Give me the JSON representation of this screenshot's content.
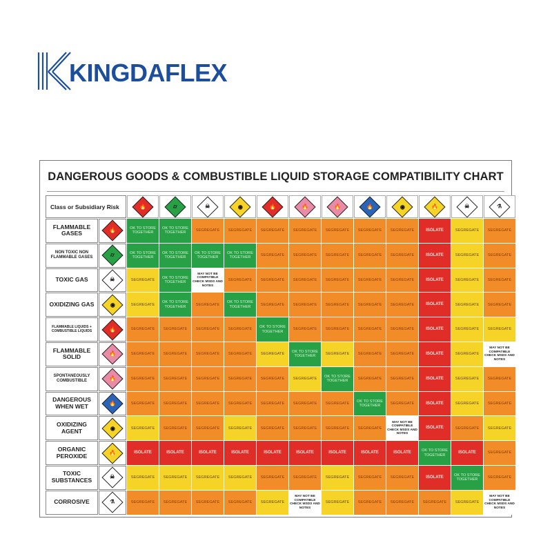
{
  "logo": {
    "brand": "KINGDAFLEX",
    "icon": "kingdaflex-logo"
  },
  "chart": {
    "title": "DANGEROUS GOODS & COMBUSTIBLE LIQUID STORAGE COMPATIBILITY CHART",
    "header_label": "Class or Subsidiary Risk",
    "text_segregate": "SEGREGATE",
    "text_ok": "OK TO STORE TOGETHER",
    "text_isolate": "ISOLATE",
    "text_mix": "MAY NOT BE COMPATIBLE CHECK MSDS AND NOTES",
    "legend_colors": {
      "segregate": "#f28c28",
      "segregate_alt": "#f5d327",
      "ok": "#27a046",
      "isolate": "#e12d27",
      "mix": "#ffffff"
    },
    "column_symbols": [
      {
        "icon": "flame-diamond-icon",
        "color": "#e12d27",
        "glyph": "🔥"
      },
      {
        "icon": "gas-cylinder-diamond-icon",
        "color": "#27a046",
        "glyph": "⌭"
      },
      {
        "icon": "skull-diamond-icon",
        "color": "#ffffff",
        "glyph": "☠"
      },
      {
        "icon": "oxidizer-diamond-icon",
        "color": "#f5d327",
        "glyph": "◉"
      },
      {
        "icon": "flame-diamond-icon",
        "color": "#e12d27",
        "glyph": "🔥"
      },
      {
        "icon": "striped-flame-diamond-icon",
        "color": "#e98aa6",
        "glyph": "🔥"
      },
      {
        "icon": "spontaneous-flame-diamond-icon",
        "color": "#e98aa6",
        "glyph": "🔥"
      },
      {
        "icon": "water-flame-diamond-icon",
        "color": "#2a64b8",
        "glyph": "🔥"
      },
      {
        "icon": "oxidizer-diamond-icon",
        "color": "#f5d327",
        "glyph": "◉"
      },
      {
        "icon": "organic-peroxide-diamond-icon",
        "color": "#f5d327",
        "glyph": "🔥"
      },
      {
        "icon": "skull-diamond-icon",
        "color": "#ffffff",
        "glyph": "☠"
      },
      {
        "icon": "corrosive-diamond-icon",
        "color": "#ffffff",
        "glyph": "⚗"
      }
    ],
    "rows": [
      {
        "label": "FLAMMABLE GASES",
        "icon": "flame-diamond-icon",
        "color": "#e12d27",
        "glyph": "🔥",
        "size": "n",
        "cells": [
          "ok",
          "ok",
          "seg",
          "seg",
          "seg",
          "seg",
          "seg",
          "seg",
          "seg",
          "iso",
          "segy",
          "seg"
        ]
      },
      {
        "label": "NON TOXIC NON FLAMMABLE GASES",
        "icon": "gas-cylinder-diamond-icon",
        "color": "#27a046",
        "glyph": "⌭",
        "size": "s",
        "cells": [
          "ok",
          "ok",
          "ok",
          "ok",
          "seg",
          "seg",
          "seg",
          "seg",
          "seg",
          "iso",
          "segy",
          "seg"
        ]
      },
      {
        "label": "TOXIC GAS",
        "icon": "skull-diamond-icon",
        "color": "#ffffff",
        "glyph": "☠",
        "size": "n",
        "cells": [
          "segy",
          "ok",
          "mix",
          "seg",
          "seg",
          "seg",
          "seg",
          "seg",
          "seg",
          "iso",
          "segy",
          "seg"
        ]
      },
      {
        "label": "OXIDIZING GAS",
        "icon": "oxidizer-diamond-icon",
        "color": "#f5d327",
        "glyph": "◉",
        "size": "n",
        "cells": [
          "segy",
          "ok",
          "seg",
          "ok",
          "seg",
          "seg",
          "seg",
          "seg",
          "seg",
          "iso",
          "segy",
          "seg"
        ]
      },
      {
        "label": "FLAMMABLE LIQUIDS + COMBUSTIBLE LIQUIDS",
        "icon": "flame-diamond-icon",
        "color": "#e12d27",
        "glyph": "🔥",
        "size": "xs",
        "cells": [
          "seg",
          "seg",
          "seg",
          "seg",
          "ok",
          "seg",
          "seg",
          "seg",
          "seg",
          "iso",
          "segy",
          "segy"
        ]
      },
      {
        "label": "FLAMMABLE SOLID",
        "icon": "striped-flame-diamond-icon",
        "color": "#e98aa6",
        "glyph": "🔥",
        "size": "n",
        "cells": [
          "seg",
          "seg",
          "seg",
          "seg",
          "segy",
          "ok",
          "segy",
          "seg",
          "seg",
          "iso",
          "segy",
          "mix"
        ]
      },
      {
        "label": "SPONTANEOUSLY COMBUSTIBLE",
        "icon": "spontaneous-flame-diamond-icon",
        "color": "#e98aa6",
        "glyph": "🔥",
        "size": "s",
        "cells": [
          "seg",
          "seg",
          "seg",
          "seg",
          "seg",
          "segy",
          "ok",
          "seg",
          "seg",
          "iso",
          "segy",
          "seg"
        ]
      },
      {
        "label": "DANGEROUS WHEN WET",
        "icon": "water-flame-diamond-icon",
        "color": "#2a64b8",
        "glyph": "🔥",
        "size": "n",
        "cells": [
          "seg",
          "seg",
          "seg",
          "seg",
          "seg",
          "seg",
          "seg",
          "ok",
          "seg",
          "iso",
          "segy",
          "seg"
        ]
      },
      {
        "label": "OXIDIZING AGENT",
        "icon": "oxidizer-diamond-icon",
        "color": "#f5d327",
        "glyph": "◉",
        "size": "n",
        "cells": [
          "segy",
          "seg",
          "seg",
          "segy",
          "seg",
          "seg",
          "seg",
          "seg",
          "mix",
          "iso",
          "seg",
          "segy"
        ]
      },
      {
        "label": "ORGANIC PEROXIDE",
        "icon": "organic-peroxide-diamond-icon",
        "color": "#f5d327",
        "glyph": "🔥",
        "size": "n",
        "cells": [
          "iso",
          "iso",
          "iso",
          "iso",
          "iso",
          "iso",
          "iso",
          "iso",
          "iso",
          "ok",
          "iso",
          "seg"
        ]
      },
      {
        "label": "TOXIC SUBSTANCES",
        "icon": "skull-diamond-icon",
        "color": "#ffffff",
        "glyph": "☠",
        "size": "n",
        "cells": [
          "segy",
          "segy",
          "segy",
          "segy",
          "seg",
          "seg",
          "segy",
          "seg",
          "seg",
          "iso",
          "ok",
          "seg"
        ]
      },
      {
        "label": "CORROSIVE",
        "icon": "corrosive-diamond-icon",
        "color": "#ffffff",
        "glyph": "⚗",
        "size": "n",
        "cells": [
          "seg",
          "seg",
          "seg",
          "seg",
          "segy",
          "mix",
          "segy",
          "seg",
          "seg",
          "seg",
          "segy",
          "mix"
        ]
      }
    ]
  }
}
